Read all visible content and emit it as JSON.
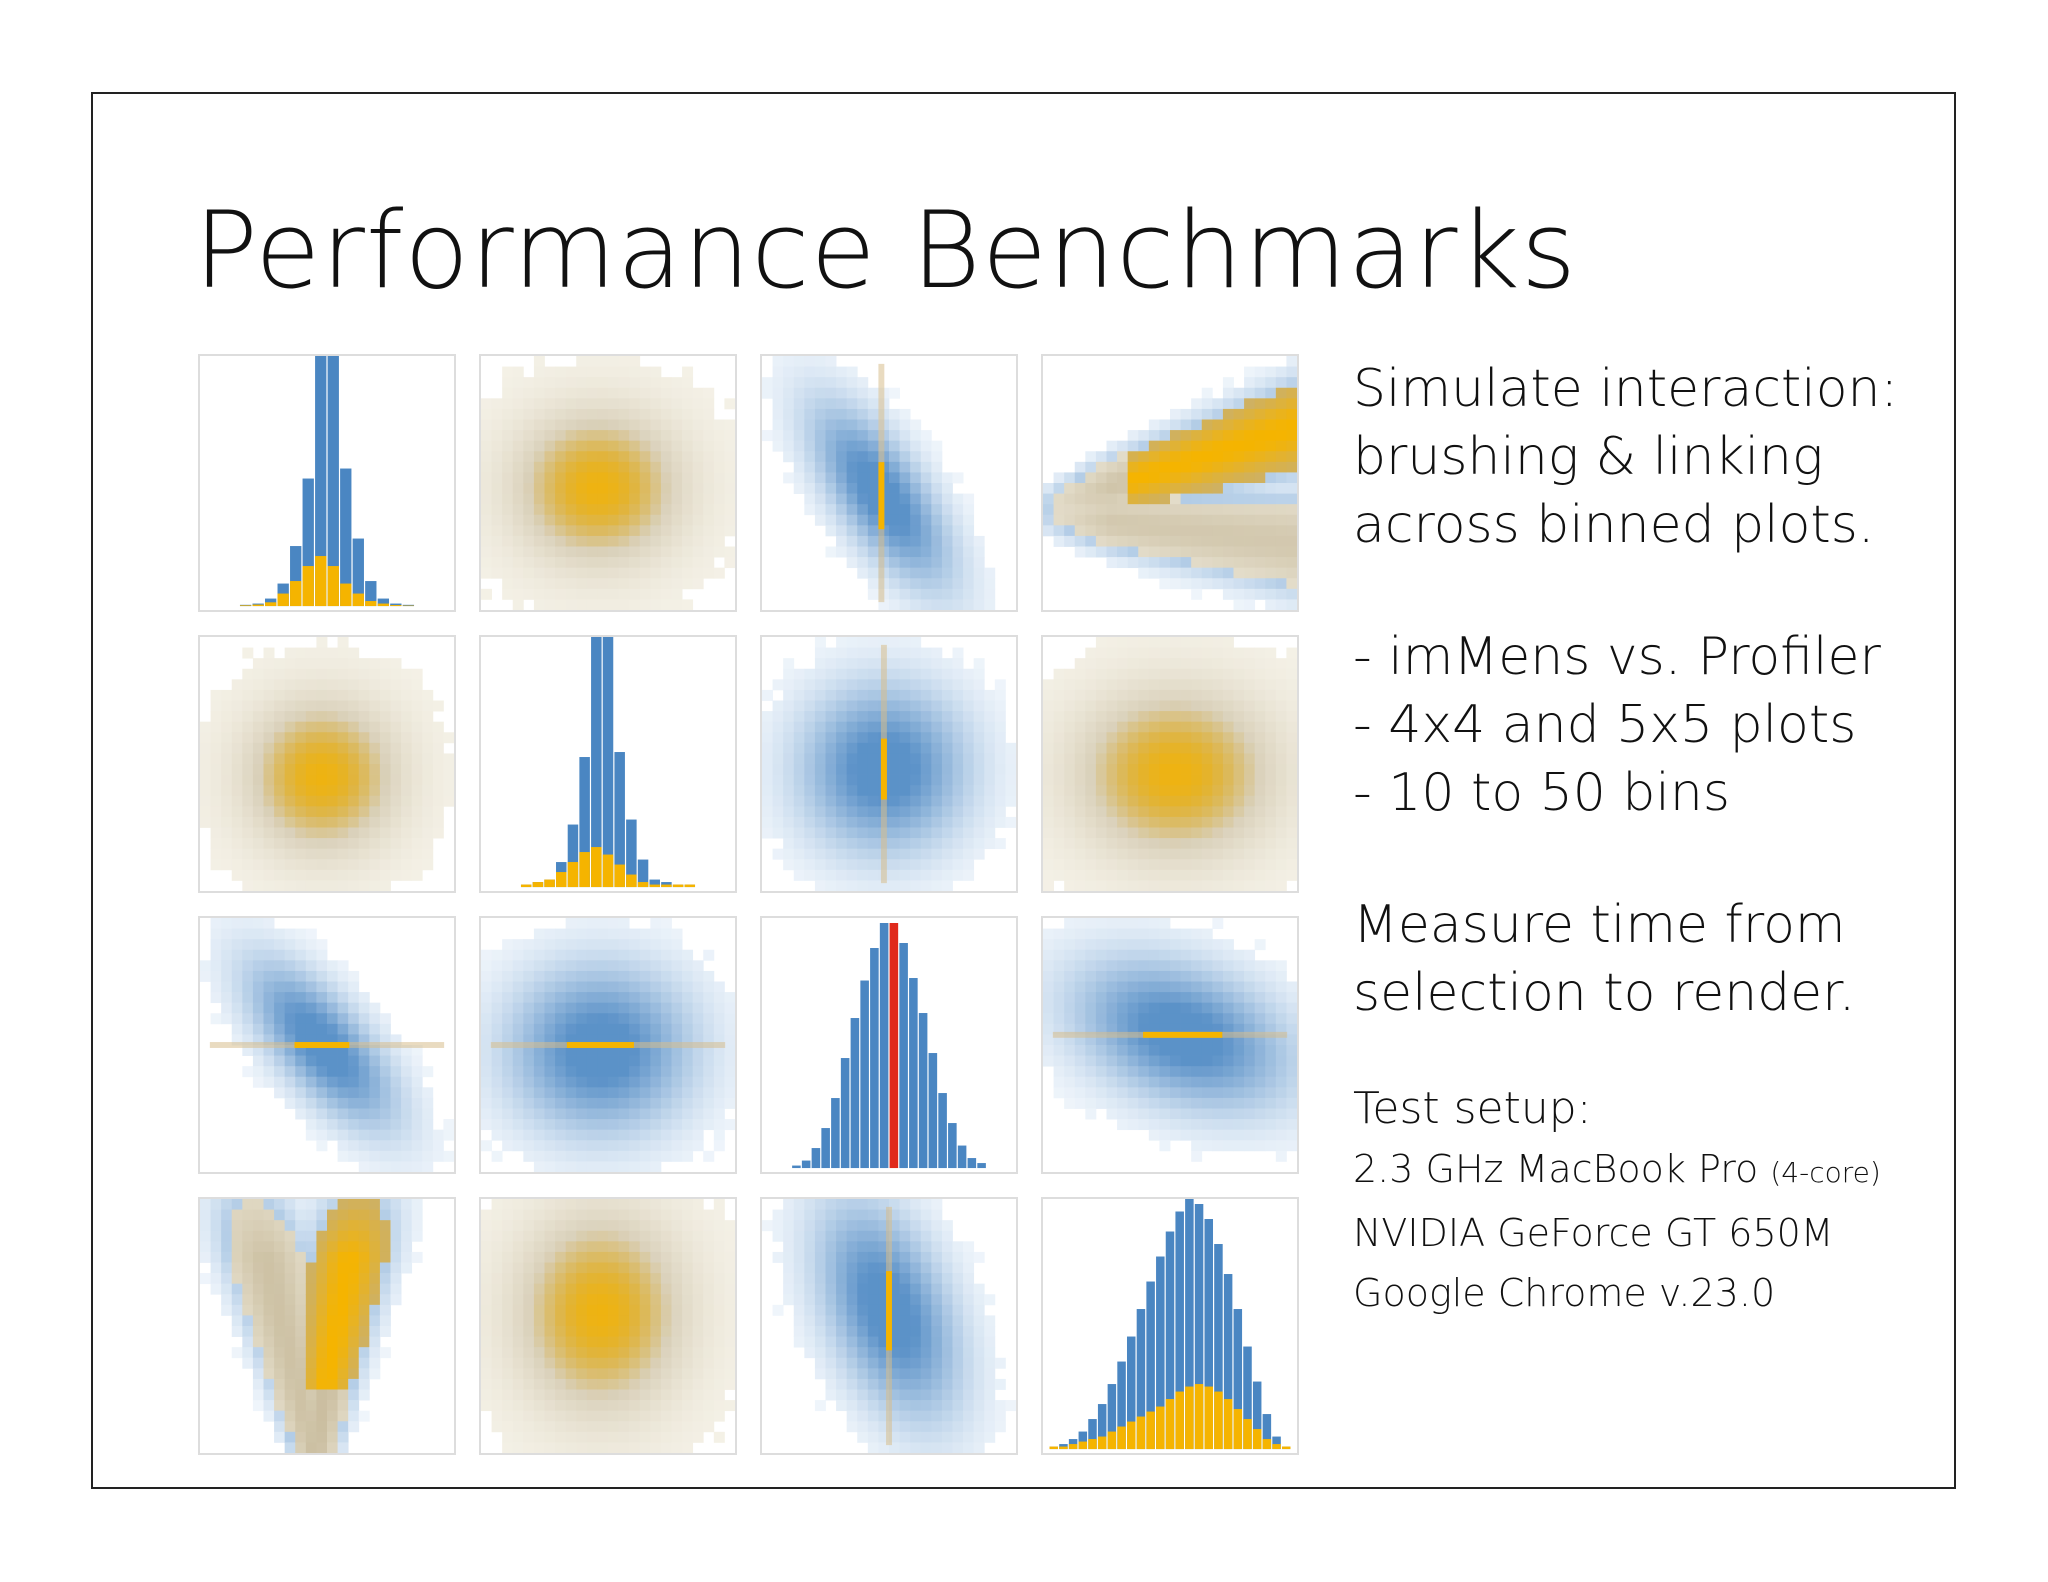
{
  "title": "Performance Benchmarks",
  "description": {
    "para1": [
      "Simulate interaction:",
      "brushing & linking",
      "across binned plots."
    ],
    "para2": [
      "- imMens vs. Profiler",
      "- 4x4 and 5x5 plots",
      "- 10 to 50 bins"
    ],
    "para3": [
      "Measure time from",
      "selection to render."
    ],
    "test_setup": {
      "heading": "Test setup:",
      "lines": [
        {
          "text": "2.3 GHz MacBook Pro",
          "note": "(4-core)"
        },
        {
          "text": "NVIDIA GeForce GT 650M",
          "note": ""
        },
        {
          "text": "Google Chrome v.23.0",
          "note": ""
        }
      ]
    }
  },
  "colors": {
    "base": "#4a86c2",
    "selected": "#f5b400",
    "brush": "#e02a1c",
    "panel_border": "#dddddd"
  },
  "chart_data": {
    "type": "heatmap",
    "layout": "4x4 scatterplot matrix of binned plots; histograms on diagonal",
    "panels": [
      {
        "row": 0,
        "col": 0,
        "kind": "histogram",
        "values": [
          0.5,
          1,
          3,
          9,
          24,
          51,
          100,
          100,
          55,
          27,
          10,
          3,
          1,
          0.5
        ],
        "selected": [
          0.3,
          0.6,
          1.5,
          5,
          10,
          16,
          20,
          16,
          9,
          5,
          2,
          1,
          0.4,
          0.2
        ]
      },
      {
        "row": 0,
        "col": 1,
        "kind": "density",
        "mu": [
          0.46,
          0.52
        ],
        "sd": [
          0.22,
          0.2
        ],
        "rho": 0,
        "selected": "full"
      },
      {
        "row": 0,
        "col": 2,
        "kind": "density",
        "mu": [
          0.47,
          0.55
        ],
        "sd": [
          0.17,
          0.22
        ],
        "rho": 0.7,
        "selected": "vline",
        "sel_pos": 0.47
      },
      {
        "row": 0,
        "col": 3,
        "kind": "fork",
        "selected": "upper"
      },
      {
        "row": 1,
        "col": 0,
        "kind": "density",
        "mu": [
          0.48,
          0.55
        ],
        "sd": [
          0.2,
          0.2
        ],
        "rho": 0,
        "selected": "full"
      },
      {
        "row": 1,
        "col": 1,
        "kind": "histogram",
        "values": [
          1,
          2,
          3,
          10,
          25,
          52,
          100,
          100,
          54,
          27,
          11,
          3,
          2,
          1,
          1
        ],
        "selected": [
          1,
          2,
          3,
          6,
          10,
          14,
          16,
          13,
          9,
          5,
          2,
          1,
          1,
          1,
          1
        ]
      },
      {
        "row": 1,
        "col": 2,
        "kind": "density",
        "mu": [
          0.48,
          0.52
        ],
        "sd": [
          0.2,
          0.2
        ],
        "rho": 0,
        "selected": "vline",
        "sel_pos": 0.48
      },
      {
        "row": 1,
        "col": 3,
        "kind": "density",
        "mu": [
          0.52,
          0.54
        ],
        "sd": [
          0.26,
          0.22
        ],
        "rho": 0,
        "selected": "full"
      },
      {
        "row": 2,
        "col": 0,
        "kind": "density",
        "mu": [
          0.48,
          0.5
        ],
        "sd": [
          0.18,
          0.2
        ],
        "rho": 0.7,
        "selected": "hline",
        "sel_pos": 0.5
      },
      {
        "row": 2,
        "col": 1,
        "kind": "density",
        "mu": [
          0.47,
          0.52
        ],
        "sd": [
          0.22,
          0.2
        ],
        "rho": 0,
        "selected": "hline",
        "sel_pos": 0.5
      },
      {
        "row": 2,
        "col": 2,
        "kind": "histogram",
        "values": [
          1,
          3,
          8,
          16,
          28,
          44,
          60,
          75,
          88,
          98,
          98,
          90,
          76,
          62,
          46,
          30,
          18,
          9,
          4,
          2
        ],
        "selected": [],
        "brushed_bin": 10
      },
      {
        "row": 2,
        "col": 3,
        "kind": "density",
        "mu": [
          0.55,
          0.46
        ],
        "sd": [
          0.26,
          0.18
        ],
        "rho": 0.35,
        "selected": "hline",
        "sel_pos": 0.46
      },
      {
        "row": 3,
        "col": 0,
        "kind": "fork_vertical",
        "selected": "right"
      },
      {
        "row": 3,
        "col": 1,
        "kind": "density",
        "mu": [
          0.47,
          0.45
        ],
        "sd": [
          0.22,
          0.26
        ],
        "rho": 0,
        "selected": "full"
      },
      {
        "row": 3,
        "col": 2,
        "kind": "density",
        "mu": [
          0.5,
          0.44
        ],
        "sd": [
          0.17,
          0.26
        ],
        "rho": 0.45,
        "selected": "vline",
        "sel_pos": 0.5
      },
      {
        "row": 3,
        "col": 3,
        "kind": "histogram",
        "values": [
          1,
          2,
          4,
          7,
          12,
          18,
          26,
          35,
          45,
          56,
          67,
          77,
          87,
          95,
          100,
          98,
          92,
          82,
          70,
          56,
          41,
          27,
          14,
          5,
          1
        ],
        "selected": [
          1,
          1,
          2,
          3,
          4,
          5,
          7,
          9,
          11,
          13,
          15,
          17,
          20,
          23,
          25,
          26,
          25,
          23,
          20,
          16,
          12,
          8,
          4,
          2,
          1
        ]
      }
    ]
  }
}
